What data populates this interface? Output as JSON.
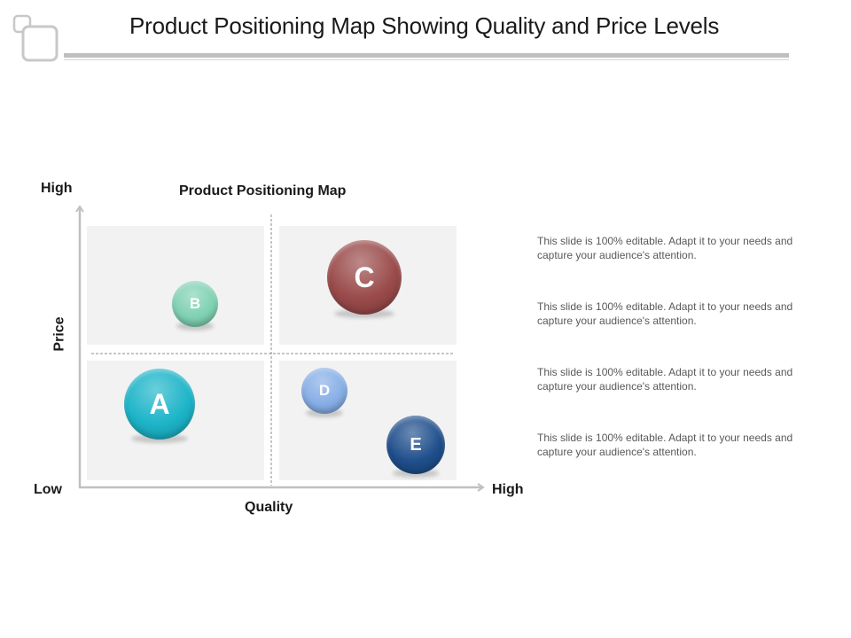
{
  "header": {
    "title": "Product Positioning Map Showing Quality and Price Levels"
  },
  "map": {
    "title": "Product Positioning Map",
    "x_axis": {
      "label": "Quality",
      "low": "Low",
      "high": "High"
    },
    "y_axis": {
      "label": "Price",
      "high": "High"
    },
    "products": [
      {
        "label": "A",
        "color": "#1cb4c8"
      },
      {
        "label": "B",
        "color": "#7fd1b3"
      },
      {
        "label": "C",
        "color": "#9a4a4a"
      },
      {
        "label": "D",
        "color": "#86aee6"
      },
      {
        "label": "E",
        "color": "#1f4e8c"
      }
    ]
  },
  "descriptions": [
    "This slide is 100% editable. Adapt it to your needs and capture your audience's attention.",
    "This slide is 100% editable. Adapt it to your needs and capture your audience's attention.",
    "This slide is 100% editable. Adapt it to your needs and capture your audience's attention.",
    "This slide is 100% editable. Adapt it to your needs and capture your audience's attention."
  ]
}
